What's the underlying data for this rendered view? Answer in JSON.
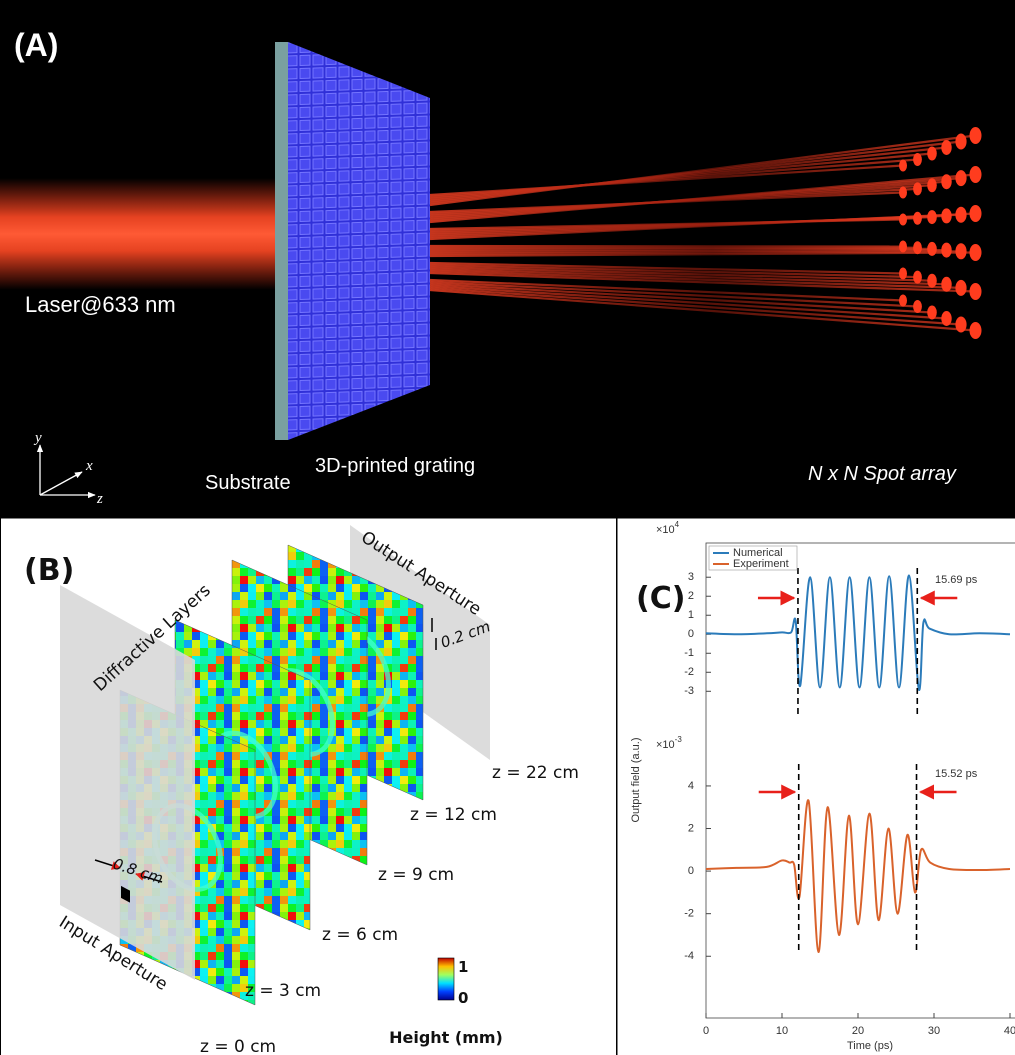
{
  "panel_a": {
    "label": "(A)",
    "laser": "Laser@633 nm",
    "substrate": "Substrate",
    "grating": "3D-printed grating",
    "spot_array": "N x N Spot array",
    "axes": {
      "y": "y",
      "x": "x",
      "z": "z"
    }
  },
  "panel_b": {
    "label": "(B)",
    "diffractive_layers": "Diffractive Layers",
    "output_aperture": "Output Aperture",
    "input_aperture": "Input Aperture",
    "output_size": "0.2 cm",
    "input_size": "0.8 cm",
    "planes": [
      "z = 0 cm",
      "z = 3 cm",
      "z = 6 cm",
      "z = 9 cm",
      "z = 12 cm",
      "z = 22 cm"
    ],
    "colorbar": {
      "max": 1,
      "min": 0,
      "title": "Height (mm)"
    }
  },
  "panel_c": {
    "label": "(C)",
    "x_label": "Time (ps)",
    "y_label": "Output field (a.u.)",
    "xlim": [
      0,
      40
    ],
    "xticks": [
      0,
      10,
      20,
      30,
      40
    ],
    "charts": [
      {
        "type": "line",
        "multiplier": {
          "base": "×10",
          "exponent": 4
        },
        "ylim": [
          -4.3,
          4.8
        ],
        "yticks": [
          -3,
          -2,
          -1,
          0,
          1,
          2,
          3
        ],
        "series": [
          {
            "name": "Numerical",
            "color": "#2b7bba",
            "x": [
              0,
              4,
              8,
              10,
              11.2,
              11.8,
              12.4,
              13.7,
              15.0,
              16.3,
              17.6,
              18.9,
              20.2,
              21.5,
              22.8,
              24.1,
              25.4,
              26.7,
              28.0,
              28.6,
              29.4,
              32,
              36,
              40
            ],
            "values": [
              0.05,
              0.0,
              0.05,
              0.1,
              0.1,
              0.7,
              -2.7,
              3.0,
              -2.8,
              3.0,
              -2.8,
              3.0,
              -2.8,
              3.0,
              -2.8,
              3.05,
              -2.8,
              3.1,
              -2.9,
              0.6,
              0.3,
              0.0,
              0.05,
              0.0
            ]
          }
        ],
        "markers": [
          12.1,
          27.8
        ],
        "annotation": "15.69 ps"
      },
      {
        "type": "line",
        "multiplier": {
          "base": "×10",
          "exponent": -3
        },
        "ylim": [
          -6.9,
          5.5
        ],
        "yticks": [
          -4,
          -2,
          0,
          2,
          4
        ],
        "series": [
          {
            "name": "Experiment",
            "color": "#d9622b",
            "x": [
              0,
              4,
              8,
              10,
              11,
              11.6,
              12.3,
              13.5,
              14.8,
              16.0,
              17.5,
              18.8,
              20.0,
              21.5,
              22.7,
              24.0,
              25.2,
              26.5,
              27.5,
              28.3,
              29.5,
              32,
              36,
              40
            ],
            "values": [
              0.1,
              0.15,
              0.2,
              0.5,
              0.4,
              0.3,
              -1.2,
              3.3,
              -3.8,
              3.0,
              -3.0,
              2.6,
              -2.5,
              2.7,
              -2.3,
              2.0,
              -2.0,
              1.7,
              -1.0,
              1.0,
              0.4,
              0.1,
              0.05,
              0.1
            ]
          }
        ],
        "markers": [
          12.2,
          27.7
        ],
        "annotation": "15.52 ps"
      }
    ]
  }
}
